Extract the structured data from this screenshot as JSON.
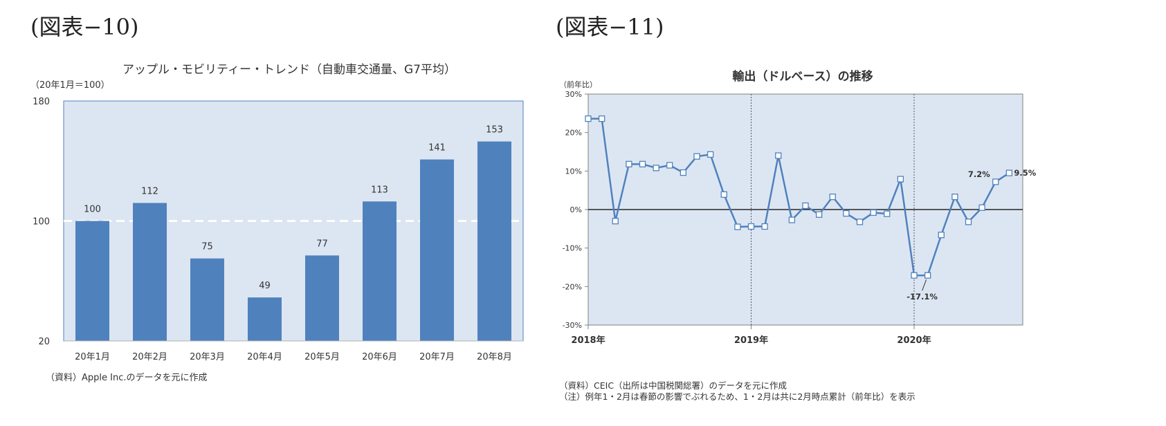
{
  "figures": [
    {
      "label": "(図表−10)"
    },
    {
      "label": "(図表−11)"
    }
  ],
  "chart_data": [
    {
      "type": "bar",
      "title": "アップル・モビリティー・トレンド（自動車交通量、G7平均）",
      "unit_label": "（20年1月＝100）",
      "categories": [
        "20年1月",
        "20年2月",
        "20年3月",
        "20年4月",
        "20年5月",
        "20年6月",
        "20年7月",
        "20年8月"
      ],
      "values": [
        100,
        112,
        75,
        49,
        77,
        113,
        141,
        153
      ],
      "ylim": [
        20,
        180
      ],
      "yticks": [
        "20",
        "100",
        "180"
      ],
      "reference_line": 100,
      "grid": false,
      "plot_background": "#dce6f2",
      "bar_color": "#4f81bd",
      "source": "（資料）Apple Inc.のデータを元に作成"
    },
    {
      "type": "line",
      "title": "輸出（ドルベース）の推移",
      "unit_label": "（前年比）",
      "x": [
        "2018-01",
        "2018-02",
        "2018-03",
        "2018-04",
        "2018-05",
        "2018-06",
        "2018-07",
        "2018-08",
        "2018-09",
        "2018-10",
        "2018-11",
        "2018-12",
        "2019-01",
        "2019-02",
        "2019-03",
        "2019-04",
        "2019-05",
        "2019-06",
        "2019-07",
        "2019-08",
        "2019-09",
        "2019-10",
        "2019-11",
        "2019-12",
        "2020-01",
        "2020-02",
        "2020-03",
        "2020-04",
        "2020-05",
        "2020-06",
        "2020-07",
        "2020-08"
      ],
      "values": [
        23.6,
        23.6,
        -3.0,
        11.8,
        11.8,
        10.8,
        11.5,
        9.6,
        13.8,
        14.3,
        3.9,
        -4.5,
        -4.4,
        -4.4,
        14.0,
        -2.7,
        1.0,
        -1.3,
        3.3,
        -1.0,
        -3.2,
        -0.8,
        -1.1,
        7.9,
        -17.1,
        -17.1,
        -6.6,
        3.3,
        -3.2,
        0.5,
        7.2,
        9.5
      ],
      "ylim": [
        -30,
        30
      ],
      "yticks": [
        "30%",
        "20%",
        "10%",
        "0%",
        "-10%",
        "-20%",
        "-30%"
      ],
      "year_labels": [
        "2018年",
        "2019年",
        "2020年"
      ],
      "annotations": [
        "-17.1%",
        "7.2%",
        "9.5%"
      ],
      "plot_background": "#dce6f2",
      "line_color": "#4f81bd",
      "notes": [
        "（資料）CEIC（出所は中国税関総署）のデータを元に作成",
        "（注）例年1・2月は春節の影響でぶれるため、1・2月は共に2月時点累計（前年比）を表示"
      ]
    }
  ]
}
